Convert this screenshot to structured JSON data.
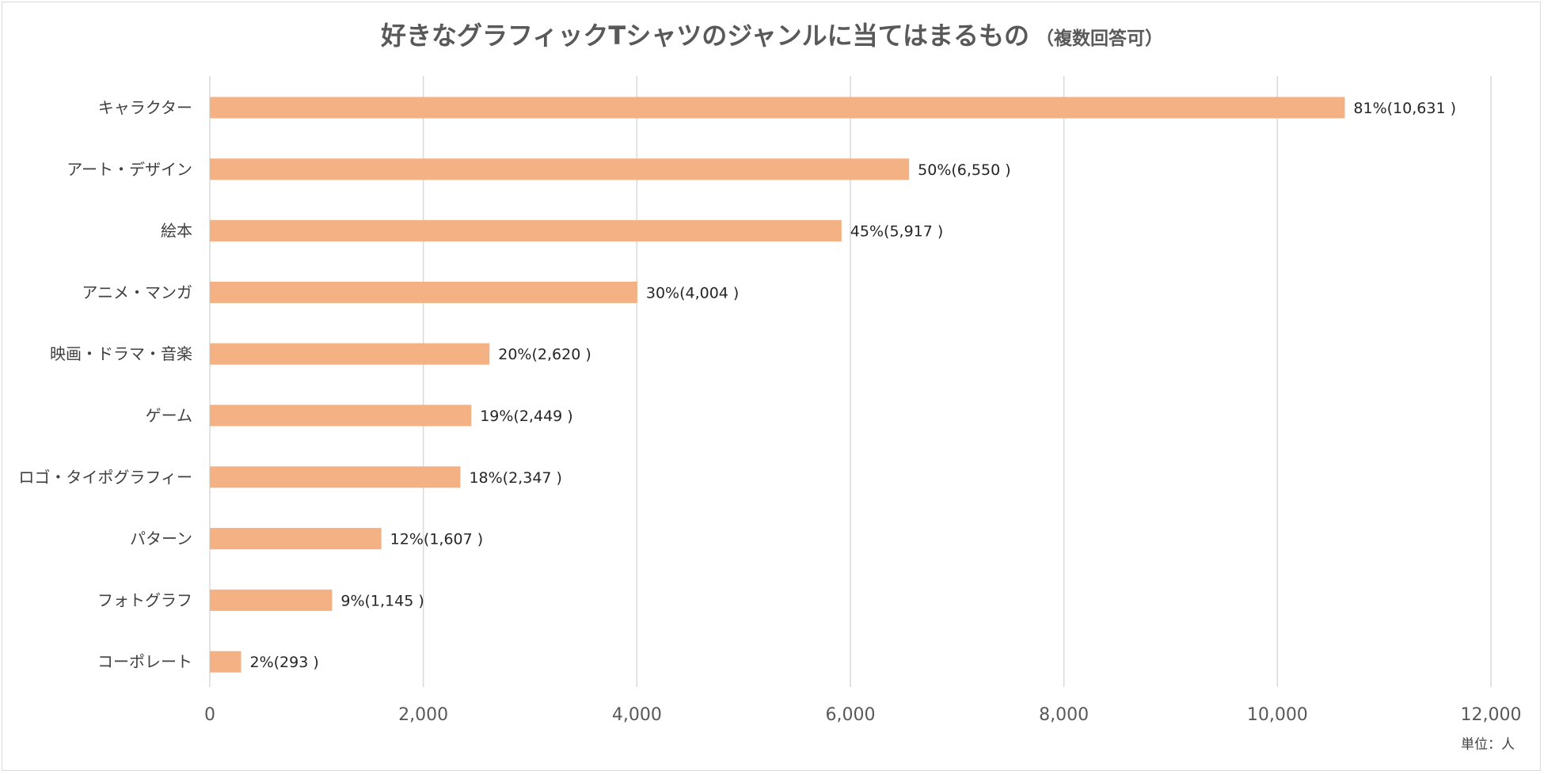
{
  "chart_data": {
    "type": "bar",
    "orientation": "horizontal",
    "title": "好きなグラフィックTシャツのジャンルに当てはまるもの",
    "subtitle": "（複数回答可）",
    "unit_note": "単位：人",
    "categories": [
      "キャラクター",
      "アート・デザイン",
      "絵本",
      "アニメ・マンガ",
      "映画・ドラマ・音楽",
      "ゲーム",
      "ロゴ・タイポグラフィー",
      "パターン",
      "フォトグラフ",
      "コーポレート"
    ],
    "values": [
      10631,
      6550,
      5917,
      4004,
      2620,
      2449,
      2347,
      1607,
      1145,
      293
    ],
    "data_labels": [
      "81%(10,631 )",
      "50%(6,550 )",
      "45%(5,917 )",
      "30%(4,004 )",
      "20%(2,620 )",
      "19%(2,449 )",
      "18%(2,347 )",
      "12%(1,607 )",
      "9%(1,145 )",
      "2%(293 )"
    ],
    "xlim": [
      0,
      12000
    ],
    "x_ticks": [
      0,
      2000,
      4000,
      6000,
      8000,
      10000,
      12000
    ],
    "x_tick_labels": [
      "0",
      "2,000",
      "4,000",
      "6,000",
      "8,000",
      "10,000",
      "12,000"
    ],
    "grid": true,
    "legend": "none",
    "bar_color": "#F4B183",
    "grid_color": "#d9d9d9"
  }
}
